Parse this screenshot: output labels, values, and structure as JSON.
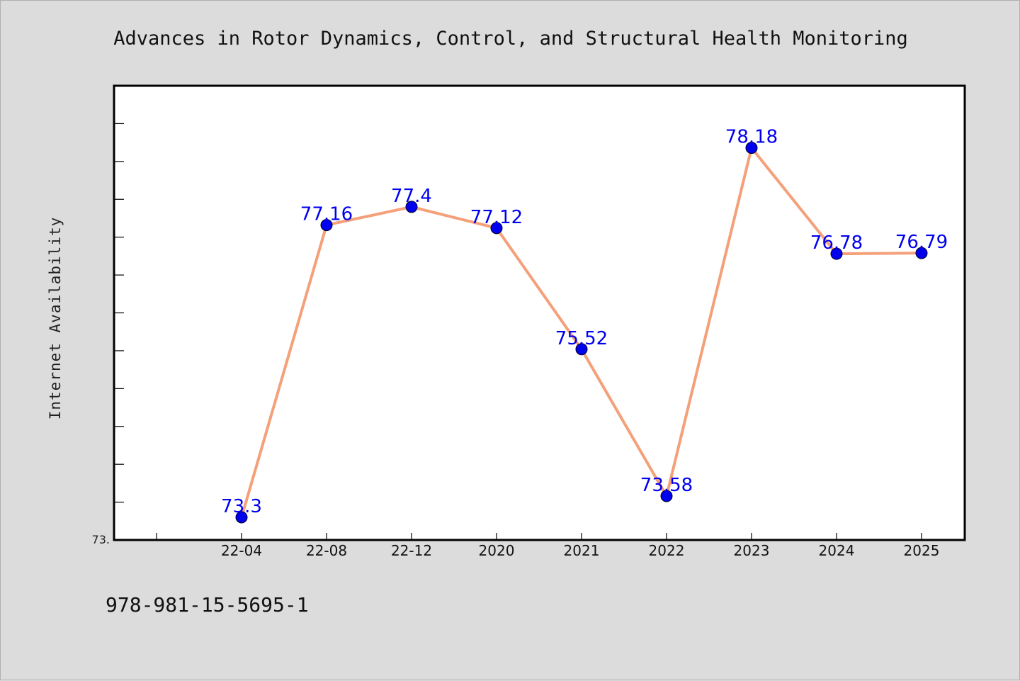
{
  "chart_data": {
    "type": "line",
    "title": "Advances in Rotor Dynamics, Control, and Structural Health Monitoring",
    "ylabel": "Internet Availability",
    "xlabel": "",
    "categories": [
      "22-04",
      "22-08",
      "22-12",
      "2020",
      "2021",
      "2022",
      "2023",
      "2024",
      "2025"
    ],
    "series": [
      {
        "values": [
          73.3,
          77.16,
          77.4,
          77.12,
          75.52,
          73.58,
          78.18,
          76.78,
          76.79
        ],
        "labels": [
          "73.3",
          "77.16",
          "77.4",
          "77.12",
          "75.52",
          "73.58",
          "78.18",
          "76.78",
          "76.79"
        ]
      }
    ],
    "ylim": [
      73.0,
      79.0
    ],
    "y_tick_labels": [
      "73."
    ],
    "line_color": "#f4a07a",
    "marker_color": "#0000ee",
    "label_color": "#0000ee",
    "grid": false
  },
  "footer": {
    "isbn": "978-981-15-5695-1"
  }
}
